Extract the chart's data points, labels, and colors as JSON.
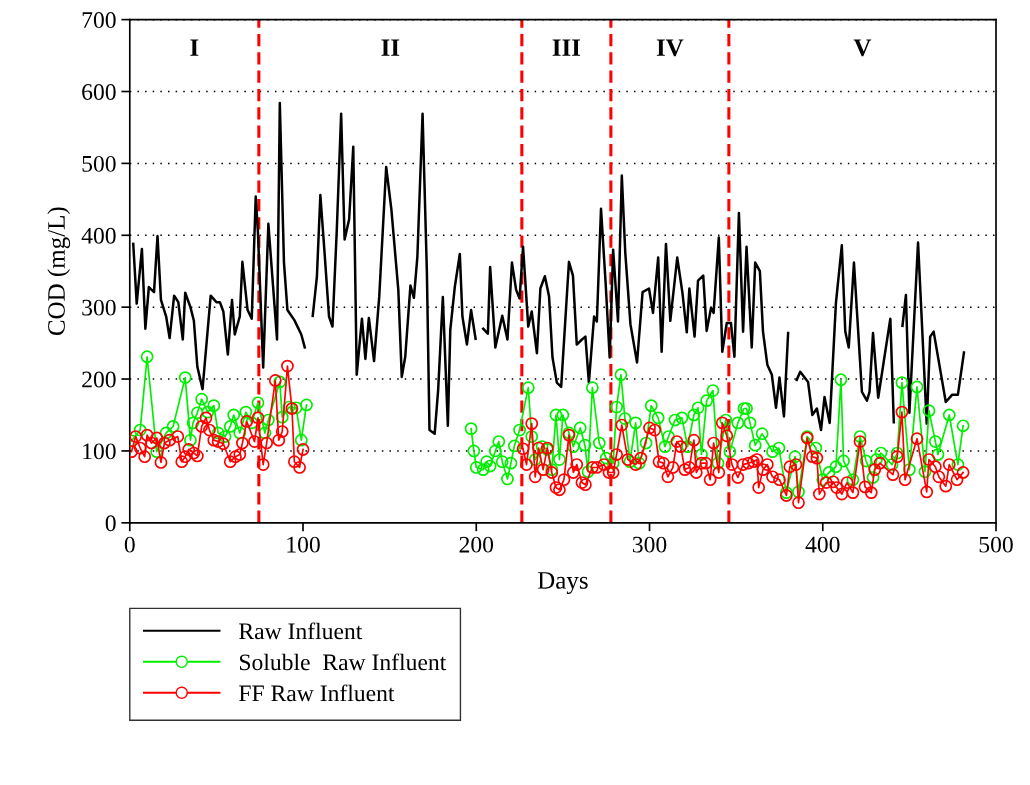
{
  "chart_data": {
    "type": "line",
    "xlabel": "Days",
    "ylabel": "COD (mg/L)",
    "xlim": [
      0,
      500
    ],
    "xticks": [
      0,
      100,
      200,
      300,
      400,
      500
    ],
    "ylim": [
      0,
      700
    ],
    "yticks": [
      0,
      100,
      200,
      300,
      400,
      500,
      600,
      700
    ],
    "grid": "y",
    "legend": "bottom left",
    "line_style": "solid",
    "series": [
      {
        "name": "Raw Influent",
        "color": "#000000",
        "marker": "none",
        "x": [
          2,
          4,
          7,
          9,
          11,
          14,
          16,
          18,
          21,
          23,
          25.6,
          28,
          30.6,
          32,
          35,
          37,
          39,
          42,
          46.7,
          50,
          52,
          54,
          56.6,
          59,
          60.6,
          63.5,
          65,
          68,
          70.4,
          72.7,
          74,
          77,
          80,
          85,
          86.6,
          89,
          91,
          95,
          99,
          101,
          103,
          105.6,
          108,
          110,
          112.6,
          115,
          117,
          119.5,
          122,
          124,
          126.6,
          129,
          131,
          134,
          136,
          138,
          141,
          144,
          148,
          151,
          155,
          157,
          159,
          162,
          164,
          166,
          169,
          171.5,
          173,
          176,
          178,
          180.7,
          183.6,
          185,
          187.6,
          190.5,
          192,
          194.6,
          197,
          199.6,
          202,
          204,
          206.7,
          208,
          211,
          215,
          218,
          220.6,
          223,
          225,
          227,
          230,
          232,
          235,
          237,
          239.6,
          242,
          244,
          246.5,
          249,
          253.5,
          255.8,
          258,
          261,
          263,
          265,
          268,
          269.6,
          272,
          274.8,
          277,
          279,
          281.8,
          284,
          286,
          289,
          292.8,
          296,
          299.7,
          302,
          305,
          307,
          309.5,
          312,
          316,
          319,
          321.5,
          323,
          326,
          328,
          331,
          333,
          335.5,
          337,
          340,
          342,
          344.6,
          347,
          349,
          351.6,
          354,
          356,
          359,
          361,
          363.7,
          365.5,
          368,
          370.6,
          373,
          375,
          377.6,
          380,
          382.5,
          385,
          387,
          391.5,
          394,
          396.6,
          399,
          401,
          404,
          407.6,
          411,
          413,
          415,
          418,
          422.6,
          425.5,
          427,
          429,
          432,
          439,
          441,
          443.5,
          446,
          448,
          450,
          455,
          460,
          462,
          464,
          471,
          474.6,
          478,
          481.5
        ],
        "values": [
          388,
          305,
          381,
          270,
          328,
          321,
          399,
          310,
          287,
          257,
          316,
          307,
          255,
          320,
          300,
          281,
          217,
          186,
          316,
          307,
          307,
          294,
          234,
          310,
          262,
          287,
          363,
          296,
          284,
          454,
          403,
          216,
          416,
          255,
          584,
          362,
          296,
          282,
          262,
          244,
          null,
          288,
          342,
          456,
          370,
          287,
          273,
          408,
          569,
          394,
          422,
          523,
          206,
          284,
          228,
          285,
          225,
          315,
          495,
          436,
          324,
          203,
          231,
          330,
          313,
          370,
          569,
          348,
          129,
          124,
          185,
          314,
          135,
          268,
          328,
          374,
          287,
          248,
          296,
          256,
          null,
          270,
          263,
          356,
          244,
          288,
          255,
          362,
          324,
          312,
          384,
          273,
          294,
          236,
          326,
          343,
          315,
          230,
          195,
          189,
          363,
          344,
          248,
          255,
          259,
          195,
          287,
          280,
          437,
          328,
          230,
          380,
          280,
          483,
          376,
          276,
          223,
          321,
          326,
          292,
          369,
          238,
          388,
          281,
          369,
          320,
          265,
          326,
          259,
          337,
          344,
          267,
          299,
          292,
          397,
          238,
          278,
          278,
          231,
          431,
          266,
          384,
          244,
          362,
          350,
          266,
          220,
          206,
          160,
          202,
          148,
          264,
          null,
          199,
          210,
          196,
          150,
          159,
          129,
          175,
          139,
          306,
          386,
          266,
          244,
          362,
          182,
          170,
          182,
          264,
          174,
          284,
          140,
          null,
          274,
          317,
          153,
          390,
          138,
          259,
          266,
          168,
          178,
          178,
          237
        ]
      },
      {
        "name": "Soluble  Raw Influent",
        "color": "#00ee00",
        "marker": "circle",
        "x": [
          1,
          6,
          10,
          15.5,
          21,
          25,
          32,
          35,
          36.5,
          39,
          41.5,
          45,
          48.5,
          51,
          55,
          58,
          60,
          63.5,
          67,
          70.4,
          74,
          78,
          80,
          86.6,
          88,
          92,
          96,
          99,
          102,
          150,
          197,
          198.6,
          200,
          204,
          206,
          208,
          211,
          213,
          215,
          218,
          220,
          222,
          225,
          230,
          232,
          234,
          238,
          241,
          243.6,
          246,
          248,
          250,
          253.5,
          256,
          260,
          262.7,
          264.5,
          267,
          271,
          275,
          279,
          281,
          283.5,
          285.8,
          288.7,
          292,
          294,
          298,
          301,
          305,
          308.9,
          311,
          314.7,
          318.7,
          322,
          325.6,
          328,
          330,
          333,
          336.6,
          339.5,
          344,
          346.4,
          351,
          354.5,
          356,
          358,
          361,
          365,
          371,
          374.7,
          379,
          384,
          386,
          391,
          396,
          400,
          403.6,
          407.6,
          410.5,
          412,
          417.4,
          421.5,
          425,
          429,
          431,
          433.6,
          440,
          443,
          445.7,
          450,
          454.4,
          459,
          461.3,
          465,
          466.5,
          473,
          478,
          481
        ],
        "values": [
          114,
          129,
          231,
          99,
          125,
          134,
          202,
          115,
          139,
          153,
          172,
          154,
          163,
          125,
          120,
          134,
          150,
          125,
          154,
          139,
          167,
          125,
          143,
          196,
          147,
          161,
          160,
          115,
          164,
          null,
          131,
          100,
          77,
          74,
          85,
          79,
          100,
          113,
          85,
          61,
          83,
          107,
          129,
          188,
          120,
          88,
          106,
          102,
          74,
          150,
          88,
          150,
          125,
          106,
          132,
          108,
          71,
          188,
          111,
          90,
          83,
          161,
          206,
          145,
          85,
          139,
          83,
          111,
          163,
          146,
          106,
          120,
          143,
          146,
          106,
          150,
          160,
          95,
          170,
          184,
          83,
          143,
          99,
          139,
          159,
          159,
          139,
          108,
          124,
          99,
          104,
          42,
          92,
          43,
          120,
          104,
          60,
          70,
          78,
          199,
          86,
          60,
          120,
          86,
          63,
          88,
          97,
          81,
          97,
          195,
          74,
          189,
          71,
          156,
          113,
          95,
          150,
          81,
          135
        ]
      },
      {
        "name": "FF Raw Influent",
        "color": "#ff0000",
        "marker": "circle",
        "x": [
          1,
          3.4,
          6,
          8.6,
          10,
          12.5,
          15.6,
          18,
          20,
          23,
          27.7,
          30,
          32,
          34,
          37,
          39,
          41.5,
          44,
          46,
          48.5,
          51,
          54,
          58,
          61,
          63.5,
          65,
          67.5,
          72,
          74,
          77,
          79,
          84,
          86,
          88,
          91,
          93.6,
          95,
          98,
          100,
          160,
          227,
          229,
          232,
          234,
          236,
          238.6,
          241,
          243.6,
          246,
          248,
          250.6,
          253.5,
          256,
          258,
          261,
          263,
          267,
          269.6,
          273.7,
          276.6,
          279,
          281,
          284,
          287.5,
          292,
          295,
          300,
          303,
          305.5,
          308,
          310.6,
          313.5,
          315.8,
          318,
          320.4,
          323,
          325.6,
          327,
          330,
          332.5,
          335,
          337,
          340,
          342,
          344.6,
          347.6,
          351,
          354,
          357,
          360,
          362,
          363,
          365.5,
          368,
          371,
          375,
          379,
          381,
          384.5,
          386,
          391,
          394,
          396.6,
          398,
          402,
          406,
          408,
          411,
          414,
          417.4,
          421.5,
          424.4,
          428,
          430,
          433,
          440.5,
          443,
          445.7,
          447.5,
          454.4,
          460,
          461.3,
          465,
          467,
          471,
          473,
          477.5,
          481
        ],
        "values": [
          99,
          120,
          104,
          92,
          122,
          111,
          118,
          84,
          111,
          115,
          120,
          85,
          92,
          102,
          97,
          93,
          134,
          146,
          129,
          115,
          113,
          110,
          85,
          92,
          95,
          111,
          141,
          113,
          146,
          81,
          111,
          198,
          115,
          127,
          218,
          159,
          85,
          77,
          102,
          null,
          103,
          81,
          138,
          64,
          104,
          74,
          104,
          70,
          49,
          46,
          60,
          122,
          70,
          81,
          56,
          53,
          77,
          77,
          81,
          70,
          70,
          95,
          136,
          88,
          81,
          90,
          132,
          129,
          85,
          83,
          64,
          77,
          113,
          106,
          74,
          77,
          115,
          70,
          83,
          83,
          60,
          111,
          70,
          139,
          121,
          81,
          63,
          81,
          83,
          85,
          88,
          49,
          74,
          81,
          64,
          60,
          38,
          78,
          81,
          28,
          118,
          92,
          90,
          40,
          56,
          57,
          49,
          40,
          56,
          42,
          113,
          50,
          42,
          74,
          83,
          67,
          92,
          154,
          60,
          117,
          43,
          88,
          78,
          64,
          51,
          81,
          60,
          70
        ]
      }
    ],
    "ref_lines": [
      {
        "axis": "x",
        "value": 74.5,
        "color": "#ff0000",
        "line_style": "dashed"
      },
      {
        "axis": "x",
        "value": 226.3,
        "color": "#ff0000",
        "line_style": "dashed"
      },
      {
        "axis": "x",
        "value": 277.7,
        "color": "#ff0000",
        "line_style": "dashed"
      },
      {
        "axis": "x",
        "value": 345.8,
        "color": "#ff0000",
        "line_style": "dashed"
      }
    ],
    "annotations": [
      "I",
      "II",
      "III",
      "IV",
      "V"
    ]
  }
}
